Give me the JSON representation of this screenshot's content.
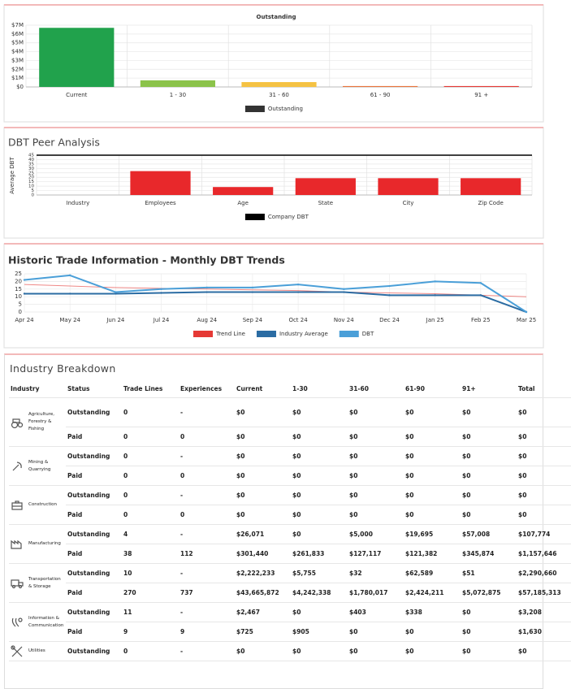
{
  "chart_data": [
    {
      "type": "bar",
      "title": "Outstanding",
      "categories": [
        "Current",
        "1 - 30",
        "31 - 60",
        "61 - 90",
        "91 +"
      ],
      "series": [
        {
          "name": "Outstanding",
          "color": "#333333",
          "values": [
            6700000,
            750000,
            550000,
            100000,
            100000
          ]
        }
      ],
      "bar_colors": [
        "#21a24c",
        "#8bc34a",
        "#f5c243",
        "#e8743b",
        "#e53935"
      ],
      "ylim": [
        0,
        7000000
      ],
      "yticks": [
        {
          "value": 0,
          "label": "$0"
        },
        {
          "value": 1000000,
          "label": "$1M"
        },
        {
          "value": 2000000,
          "label": "$2M"
        },
        {
          "value": 3000000,
          "label": "$3M"
        },
        {
          "value": 4000000,
          "label": "$4M"
        },
        {
          "value": 5000000,
          "label": "$5M"
        },
        {
          "value": 6000000,
          "label": "$6M"
        },
        {
          "value": 7000000,
          "label": "$7M"
        }
      ],
      "grid": true
    },
    {
      "type": "bar",
      "title": "DBT Peer Analysis",
      "y_label": "Average DBT",
      "categories": [
        "Industry",
        "Employees",
        "Age",
        "State",
        "City",
        "Zip Code"
      ],
      "series": [
        {
          "name": "Company DBT",
          "color": "#000000",
          "values": [
            null,
            27,
            9,
            19,
            19,
            19
          ]
        }
      ],
      "bar_color": "#e8282b",
      "ylim": [
        0,
        45
      ],
      "yticks": [
        0,
        5,
        10,
        15,
        20,
        25,
        30,
        35,
        40,
        45
      ],
      "grid": true
    },
    {
      "type": "line",
      "title": "Historic Trade Information - Monthly DBT Trends",
      "categories": [
        "Apr 24",
        "May 24",
        "Jun 24",
        "Jul 24",
        "Aug 24",
        "Sep 24",
        "Oct 24",
        "Nov 24",
        "Dec 24",
        "Jan 25",
        "Feb 25",
        "Mar 25"
      ],
      "series": [
        {
          "name": "Trend Line",
          "color": "#e53935",
          "values": [
            18,
            17,
            16,
            15.5,
            15,
            14.5,
            14,
            13,
            12.5,
            12,
            11,
            10
          ]
        },
        {
          "name": "Industry Average",
          "color": "#2b6ca3",
          "values": [
            12,
            12,
            12,
            12.5,
            13,
            13,
            13,
            13,
            11,
            11,
            11,
            0
          ]
        },
        {
          "name": "DBT",
          "color": "#4a9fd8",
          "values": [
            21,
            24,
            13,
            15,
            16,
            16,
            18,
            15,
            17,
            20,
            19,
            0
          ]
        }
      ],
      "ylim": [
        0,
        25
      ],
      "yticks": [
        0,
        5,
        10,
        15,
        20,
        25
      ],
      "grid": true
    }
  ],
  "table": {
    "title": "Industry Breakdown",
    "header": [
      "Industry",
      "Status",
      "Trade Lines",
      "Experiences",
      "Current",
      "1-30",
      "31-60",
      "61-90",
      "91+",
      "Total"
    ],
    "groups": [
      {
        "industry": "Agriculture, Forestry & Fishing",
        "rows": [
          [
            "Outstanding",
            "0",
            "-",
            "$0",
            "$0",
            "$0",
            "$0",
            "$0",
            "$0"
          ],
          [
            "Paid",
            "0",
            "0",
            "$0",
            "$0",
            "$0",
            "$0",
            "$0",
            "$0"
          ]
        ]
      },
      {
        "industry": "Mining & Quarrying",
        "rows": [
          [
            "Outstanding",
            "0",
            "-",
            "$0",
            "$0",
            "$0",
            "$0",
            "$0",
            "$0"
          ],
          [
            "Paid",
            "0",
            "0",
            "$0",
            "$0",
            "$0",
            "$0",
            "$0",
            "$0"
          ]
        ]
      },
      {
        "industry": "Construction",
        "rows": [
          [
            "Outstanding",
            "0",
            "-",
            "$0",
            "$0",
            "$0",
            "$0",
            "$0",
            "$0"
          ],
          [
            "Paid",
            "0",
            "0",
            "$0",
            "$0",
            "$0",
            "$0",
            "$0",
            "$0"
          ]
        ]
      },
      {
        "industry": "Manufacturing",
        "rows": [
          [
            "Outstanding",
            "4",
            "-",
            "$26,071",
            "$0",
            "$5,000",
            "$19,695",
            "$57,008",
            "$107,774"
          ],
          [
            "Paid",
            "38",
            "112",
            "$301,440",
            "$261,833",
            "$127,117",
            "$121,382",
            "$345,874",
            "$1,157,646"
          ]
        ]
      },
      {
        "industry": "Transportation & Storage",
        "rows": [
          [
            "Outstanding",
            "10",
            "-",
            "$2,222,233",
            "$5,755",
            "$32",
            "$62,589",
            "$51",
            "$2,290,660"
          ],
          [
            "Paid",
            "270",
            "737",
            "$43,665,872",
            "$4,242,338",
            "$1,780,017",
            "$2,424,211",
            "$5,072,875",
            "$57,185,313"
          ]
        ]
      },
      {
        "industry": "Information & Communication",
        "rows": [
          [
            "Outstanding",
            "11",
            "-",
            "$2,467",
            "$0",
            "$403",
            "$338",
            "$0",
            "$3,208"
          ],
          [
            "Paid",
            "9",
            "9",
            "$725",
            "$905",
            "$0",
            "$0",
            "$0",
            "$1,630"
          ]
        ]
      },
      {
        "industry": "Utilities",
        "rows": [
          [
            "Outstanding",
            "0",
            "-",
            "$0",
            "$0",
            "$0",
            "$0",
            "$0",
            "$0"
          ]
        ]
      }
    ]
  }
}
